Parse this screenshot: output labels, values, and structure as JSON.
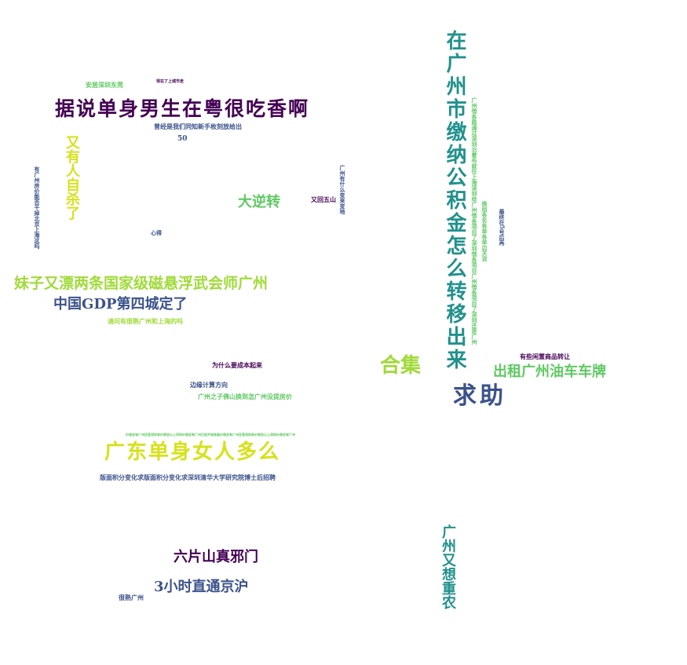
{
  "palette": {
    "dark_purple": "#440154",
    "indigo": "#3b528b",
    "teal": "#21918c",
    "green": "#5ec962",
    "yellow_green": "#a0da39",
    "yellow": "#d5e21a"
  },
  "words": {
    "w01": "据说单身男生在粤很吃香啊",
    "w02": "安居深圳东莞",
    "w03": "现在了上城市走",
    "w04": "曾经是我们同知新手枚刻放给出",
    "w05": "50",
    "w06": "又有人自杀了",
    "w07": "有广州房价能否干掉北京上海这吗",
    "w08": "大逆转",
    "w09": "又回五山",
    "w10": "广州有什么变来变地",
    "w11": "心得",
    "w12": "妹子又漂两条国家级磁悬浮武会师广州",
    "w13": "中国GDP第四城定了",
    "w14": "请问有很熟广州和上海的吗",
    "w15": "合集",
    "w16": "在广州市缴纳公积金怎么转移出来",
    "w17": "广州借各路通过深圳沿着布就往上海深圳给广州借各项目了深圳借各项目广州借各项目了深圳还是广州",
    "w18": "换组各名各单各单边关说",
    "w19": "最终在5号后再",
    "w20": "求助",
    "w21": "有些闲置商品转让",
    "w22": "出租广州油车车牌",
    "w23": "为什么要成本起来",
    "w24": "边缘计算方向",
    "w25": "广州之子佛山换到怎广州没提房价",
    "w26": "价格会有广州还是深圳有价格会以上深圳价格会有广州已经开始准备价格会有广州还是深圳有价格会以上深圳价格会有广州",
    "w27": "广东单身女人多么",
    "w28": "版面积分变化求版面积分变化求深圳清华大学研究院博士后招聘",
    "w29": "六片山真邪门",
    "w30": "3小时直通京沪",
    "w31": "很熟广州",
    "w32": "广州又想重农"
  }
}
